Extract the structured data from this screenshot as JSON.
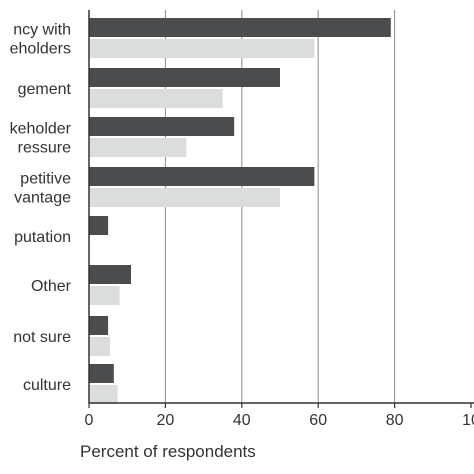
{
  "chart_data": {
    "type": "bar",
    "orientation": "horizontal",
    "categories": [
      [
        "ncy with",
        "eholders"
      ],
      [
        "gement"
      ],
      [
        "keholder",
        "ressure"
      ],
      [
        "petitive",
        "vantage"
      ],
      [
        "putation"
      ],
      [
        "Other"
      ],
      [
        "not sure"
      ],
      [
        "culture"
      ]
    ],
    "series": [
      {
        "color": "#4a4c4e",
        "values": [
          79,
          50,
          38,
          59,
          5,
          11,
          5,
          6.5
        ]
      },
      {
        "color": "#dadddb",
        "values": [
          59,
          35,
          25.5,
          50,
          null,
          8,
          5.5,
          7.5
        ]
      }
    ],
    "xlabel": "Percent of respondents",
    "xlim": [
      0,
      100
    ],
    "xticks": [
      "0",
      "20",
      "40",
      "60",
      "80",
      "10"
    ],
    "grid": "vertical"
  }
}
